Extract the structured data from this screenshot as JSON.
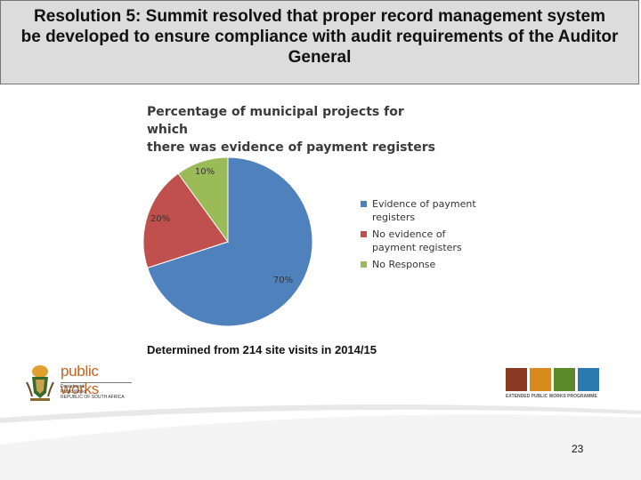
{
  "slide": {
    "title_lines": [
      "Resolution 5:  Summit resolved that proper record management system",
      "be developed to ensure compliance with audit requirements of the Auditor",
      "General"
    ],
    "caption": "Determined from 214 site visits in 2014/15",
    "page_number": "23"
  },
  "chart_data": {
    "type": "pie",
    "title_lines": [
      "Percentage of municipal projects for which",
      "there was evidence of payment registers"
    ],
    "slices": [
      {
        "name_lines": [
          "Evidence of payment",
          "registers"
        ],
        "value": 70,
        "label": "70%",
        "color": "#4f81bd"
      },
      {
        "name_lines": [
          "No evidence of",
          "payment registers"
        ],
        "value": 20,
        "label": "20%",
        "color": "#c0504d"
      },
      {
        "name_lines": [
          "No Response"
        ],
        "value": 10,
        "label": "10%",
        "color": "#9bbb59"
      }
    ],
    "legend_position": "right"
  },
  "logos": {
    "public_works": {
      "name": "public works",
      "sub_lines": [
        "Department:",
        "Public Works",
        "REPUBLIC OF SOUTH AFRICA"
      ]
    },
    "epwp": {
      "text": "EXTENDED PUBLIC WORKS PROGRAMME",
      "icon_colors": [
        "#8a3a22",
        "#d98a1e",
        "#5a8a2a",
        "#2a7ab0"
      ]
    }
  }
}
